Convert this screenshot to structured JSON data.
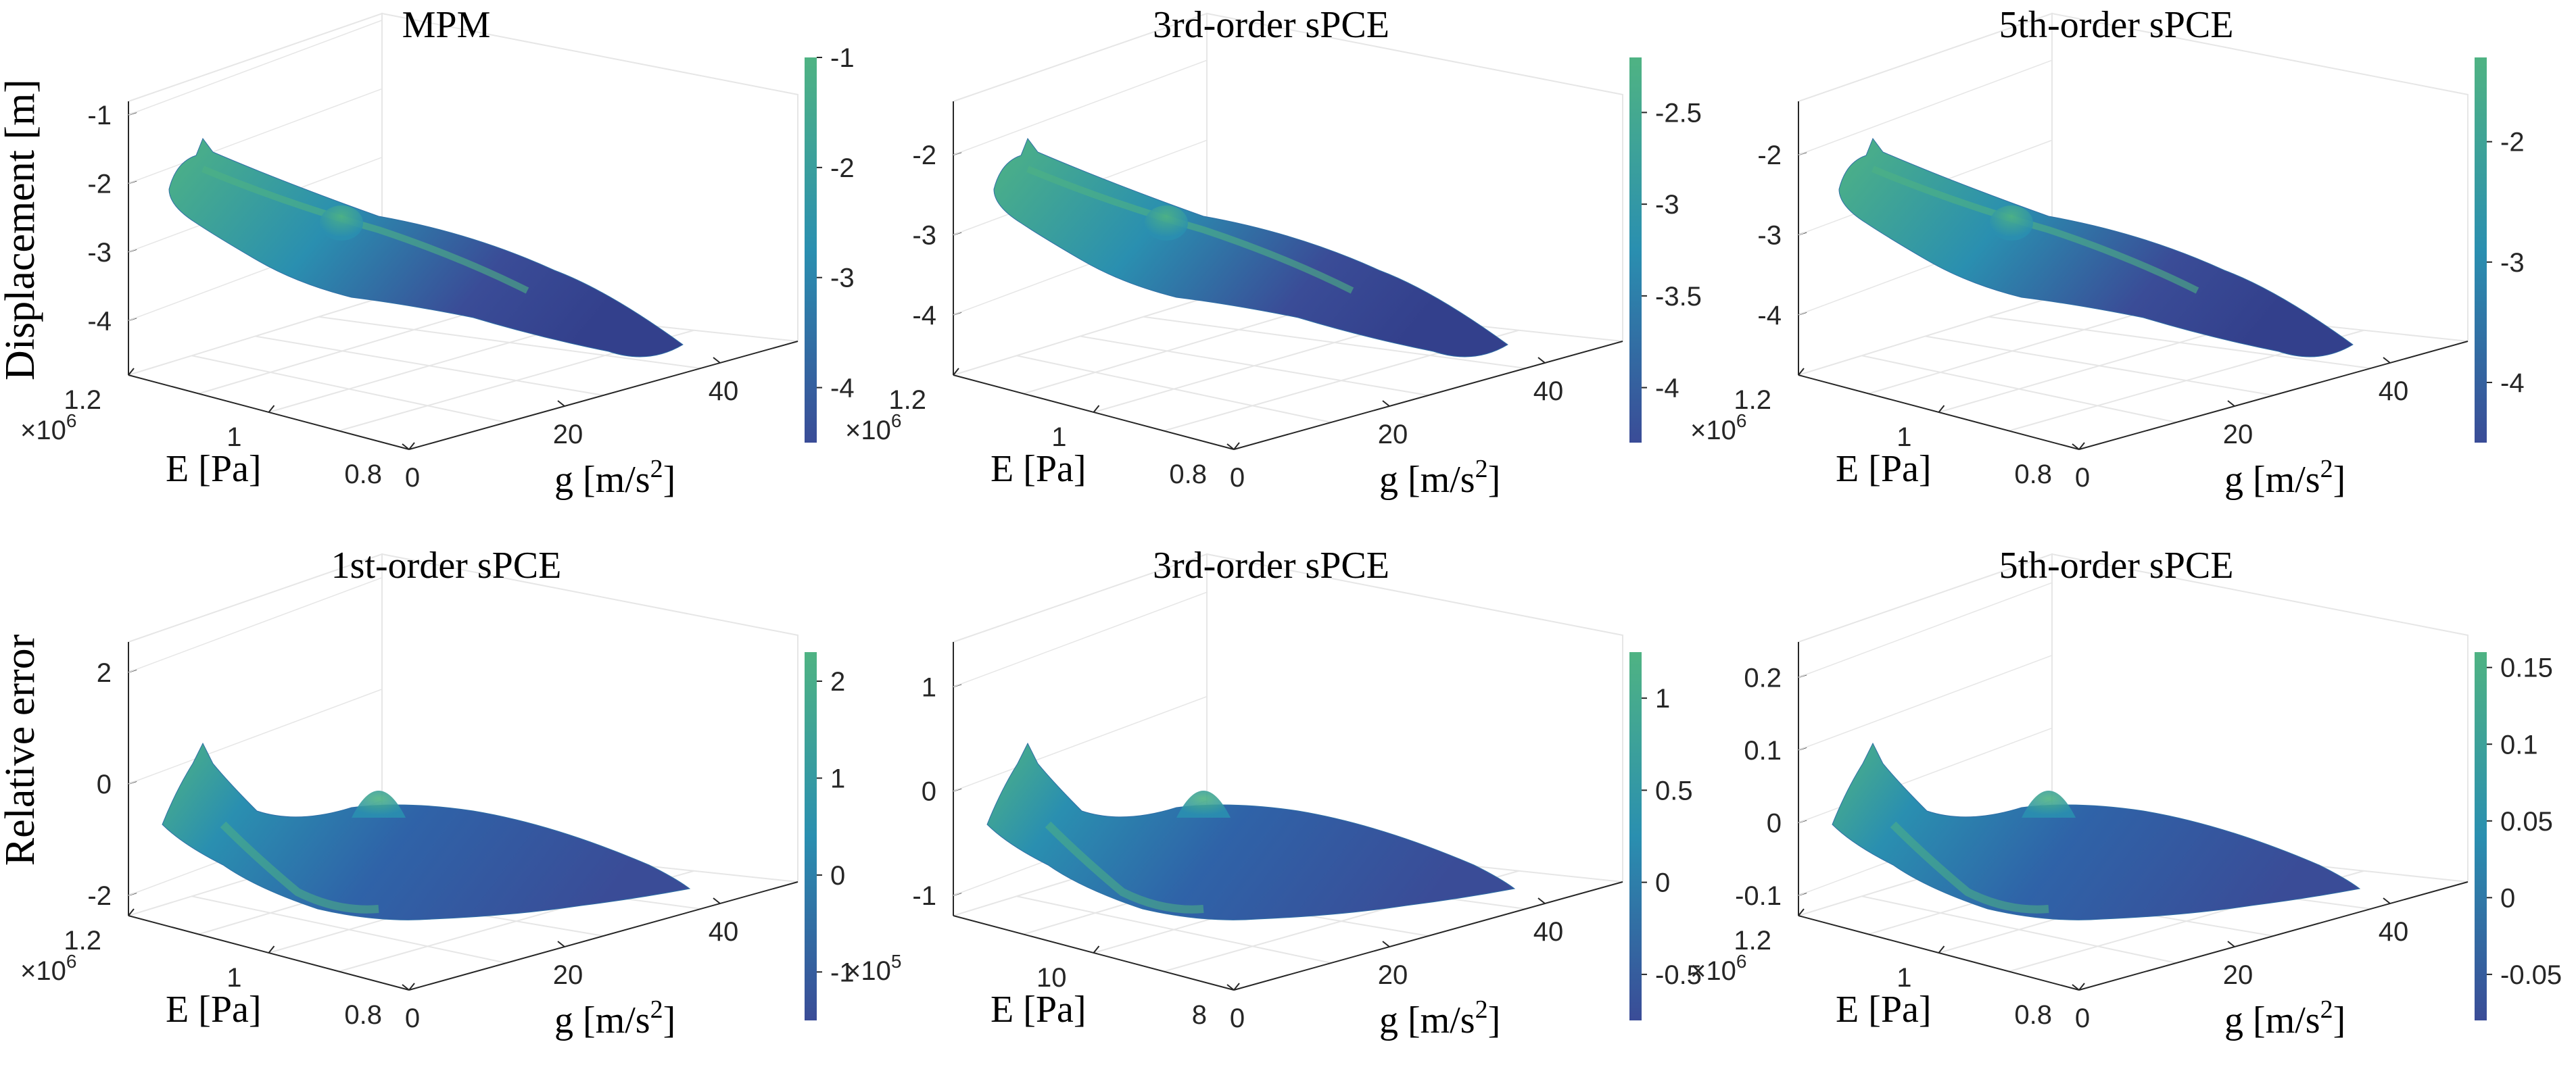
{
  "figure": {
    "row_labels": [
      "Displacement [m]",
      "Relative error"
    ],
    "exponent_base": "×10",
    "xlabel": "g [m/s",
    "xlabel_sup": "2",
    "xlabel_close": "]",
    "ylabel": "E [Pa]"
  },
  "colors": {
    "low": "#3a4c97",
    "mid": "#2a8fb0",
    "high": "#4fb383"
  },
  "chart_data": [
    {
      "type": "surface",
      "title": "MPM",
      "zlabel": "Displacement [m]",
      "x_ticks": [
        "0",
        "20",
        "40"
      ],
      "x_range": [
        0,
        50
      ],
      "y_ticks": [
        "0.8",
        "1",
        "1.2"
      ],
      "y_range": [
        0.8,
        1.2
      ],
      "y_exponent": "6",
      "z_ticks": [
        "-4",
        "-3",
        "-2",
        "-1"
      ],
      "z_range": [
        -4.5,
        -1
      ],
      "colorbar_ticks": [
        "-4",
        "-3",
        "-2",
        "-1"
      ],
      "colorbar_range": [
        -4.5,
        -1
      ],
      "grid": true
    },
    {
      "type": "surface",
      "title": "3rd-order sPCE",
      "zlabel": "Displacement [m]",
      "x_ticks": [
        "0",
        "20",
        "40"
      ],
      "x_range": [
        0,
        50
      ],
      "y_ticks": [
        "0.8",
        "1",
        "1.2"
      ],
      "y_range": [
        0.8,
        1.2
      ],
      "y_exponent": "6",
      "z_ticks": [
        "-4",
        "-3",
        "-2"
      ],
      "z_range": [
        -4.5,
        -1.5
      ],
      "colorbar_ticks": [
        "-4",
        "-3.5",
        "-3",
        "-2.5"
      ],
      "colorbar_range": [
        -4.3,
        -2.2
      ],
      "grid": true
    },
    {
      "type": "surface",
      "title": "5th-order sPCE",
      "zlabel": "Displacement [m]",
      "x_ticks": [
        "0",
        "20",
        "40"
      ],
      "x_range": [
        0,
        50
      ],
      "y_ticks": [
        "0.8",
        "1",
        "1.2"
      ],
      "y_range": [
        0.8,
        1.2
      ],
      "y_exponent": "6",
      "z_ticks": [
        "-4",
        "-3",
        "-2"
      ],
      "z_range": [
        -4.5,
        -1.5
      ],
      "colorbar_ticks": [
        "-4",
        "-3",
        "-2"
      ],
      "colorbar_range": [
        -4.5,
        -1.3
      ],
      "grid": true
    },
    {
      "type": "surface",
      "title": "1st-order sPCE",
      "zlabel": "Relative error",
      "x_ticks": [
        "0",
        "20",
        "40"
      ],
      "x_range": [
        0,
        50
      ],
      "y_ticks": [
        "0.8",
        "1",
        "1.2"
      ],
      "y_range": [
        0.8,
        1.2
      ],
      "y_exponent": "6",
      "z_ticks": [
        "-2",
        "0",
        "2"
      ],
      "z_range": [
        -2,
        2.3
      ],
      "colorbar_ticks": [
        "-1",
        "0",
        "1",
        "2"
      ],
      "colorbar_range": [
        -1.5,
        2.3
      ],
      "grid": true
    },
    {
      "type": "surface",
      "title": "3rd-order sPCE",
      "zlabel": "Relative error",
      "x_ticks": [
        "0",
        "20",
        "40"
      ],
      "x_range": [
        0,
        50
      ],
      "y_ticks": [
        "8",
        "10"
      ],
      "y_range": [
        8,
        12
      ],
      "y_exponent": "5",
      "z_ticks": [
        "-1",
        "0",
        "1"
      ],
      "z_range": [
        -1,
        1.3
      ],
      "colorbar_ticks": [
        "-0.5",
        "0",
        "0.5",
        "1"
      ],
      "colorbar_range": [
        -0.75,
        1.25
      ],
      "grid": true
    },
    {
      "type": "surface",
      "title": "5th-order sPCE",
      "zlabel": "Relative error",
      "x_ticks": [
        "0",
        "20",
        "40"
      ],
      "x_range": [
        0,
        50
      ],
      "y_ticks": [
        "0.8",
        "1",
        "1.2"
      ],
      "y_range": [
        0.8,
        1.2
      ],
      "y_exponent": "6",
      "z_ticks": [
        "-0.1",
        "0",
        "0.1",
        "0.2"
      ],
      "z_range": [
        -0.1,
        0.23
      ],
      "colorbar_ticks": [
        "-0.05",
        "0",
        "0.05",
        "0.1",
        "0.15"
      ],
      "colorbar_range": [
        -0.08,
        0.16
      ],
      "grid": true
    }
  ]
}
